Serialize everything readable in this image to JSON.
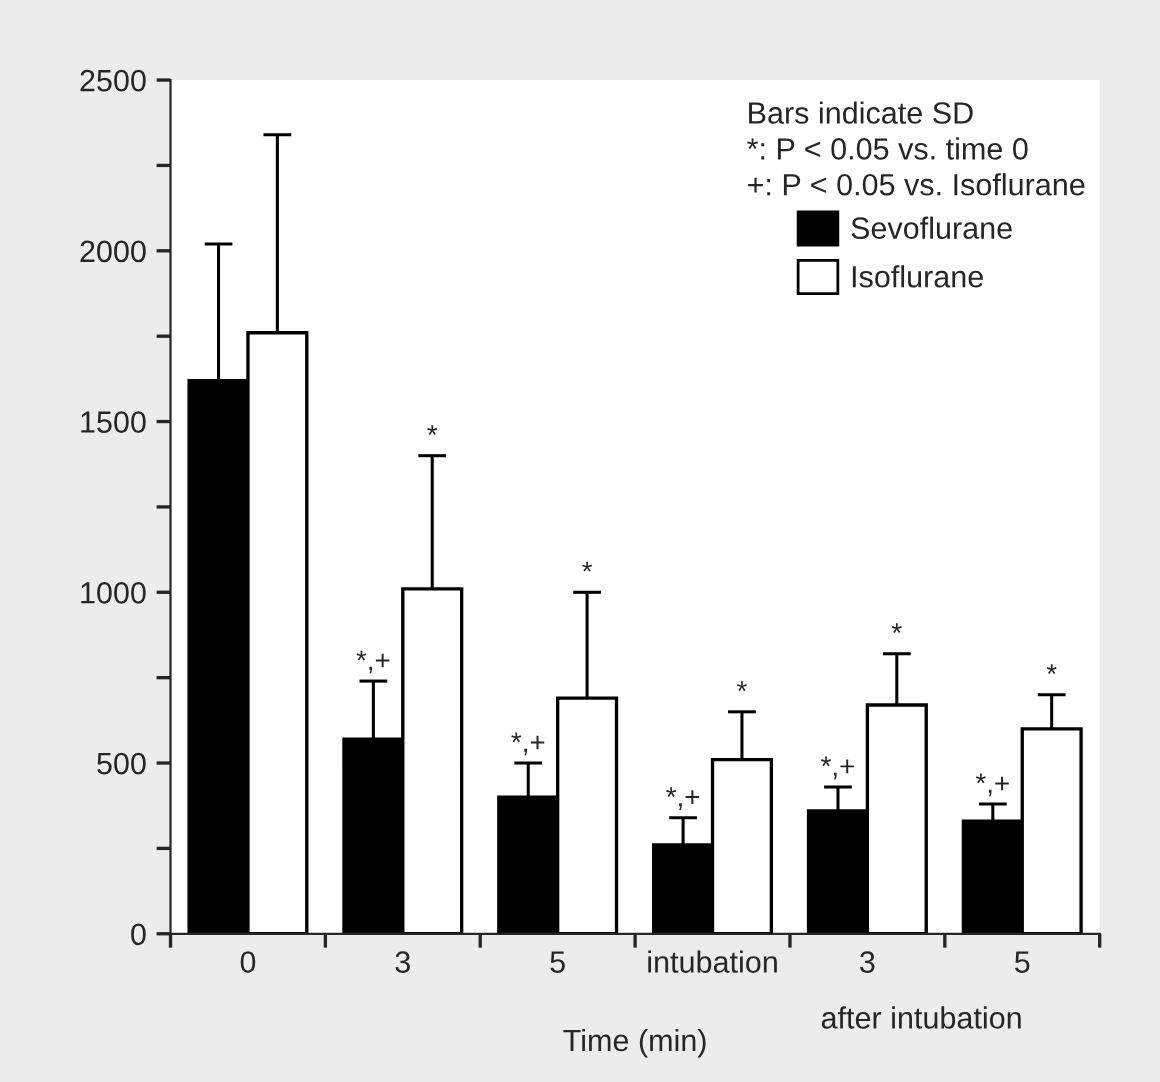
{
  "chart_data": {
    "type": "bar",
    "xlabel": "Time (min)",
    "categories": [
      "0",
      "3",
      "5",
      "intubation",
      "3",
      "5"
    ],
    "series": [
      {
        "name": "Sevoflurane",
        "color": "#000000",
        "values": [
          1620,
          570,
          400,
          260,
          360,
          330
        ],
        "errors": [
          400,
          170,
          100,
          80,
          70,
          50
        ]
      },
      {
        "name": "Isoflurane",
        "color": "#ffffff",
        "values": [
          1760,
          1010,
          690,
          510,
          670,
          600
        ],
        "errors": [
          580,
          390,
          310,
          140,
          150,
          100
        ]
      }
    ],
    "ylim": [
      0,
      2500
    ],
    "yticks": [
      0,
      {
        "value": 250,
        "label": null
      },
      500,
      {
        "value": 750,
        "label": null
      },
      1000,
      {
        "value": 1250,
        "label": null
      },
      1500,
      {
        "value": 1750,
        "label": null
      },
      2000,
      {
        "value": 2250,
        "label": null
      },
      2500
    ],
    "legend": "top right",
    "grid": false,
    "annotations": [
      "Bars indicate SD",
      "*: P < 0.05 vs. time 0",
      "+: P < 0.05 vs. Isoflurane",
      "after intubation",
      "*,+",
      "*,+",
      "*,+",
      "*,+",
      "*,+",
      "*",
      "*",
      "*",
      "*",
      "*"
    ]
  }
}
